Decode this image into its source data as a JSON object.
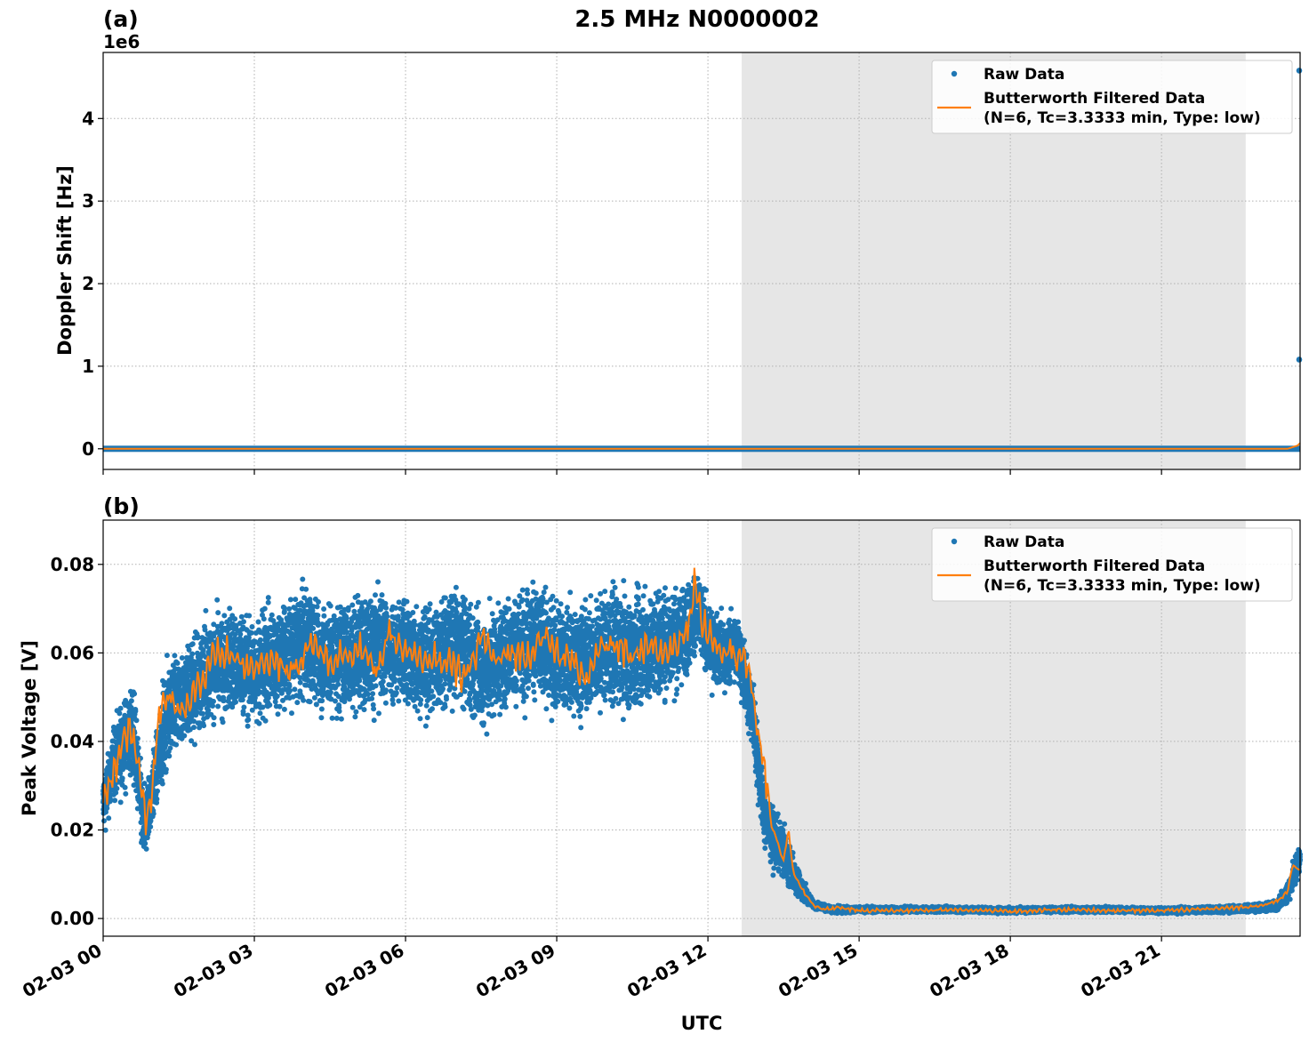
{
  "figure": {
    "title": "2.5 MHz N0000002",
    "xlabel": "UTC"
  },
  "legend": {
    "raw_label": "Raw Data",
    "filtered_label_line1": "Butterworth Filtered Data",
    "filtered_label_line2": "(N=6, Tc=3.3333 min, Type: low)"
  },
  "colors": {
    "raw": "#1f77b4",
    "filtered": "#ff7f0e",
    "night_shade": "#e6e6e6",
    "grid": "#b0b0b0"
  },
  "chart_data": [
    {
      "type": "scatter",
      "panel_label": "(a)",
      "ylabel": "Doppler Shift [Hz]",
      "offset_label": "1e6",
      "y_scale_factor": 1000000,
      "x_unit": "hours UTC on 02-03",
      "xlim": [
        0,
        23.75
      ],
      "ylim": [
        -0.25,
        4.8
      ],
      "yticks": [
        0,
        1,
        2,
        3,
        4
      ],
      "ytick_labels": [
        "0",
        "1",
        "2",
        "3",
        "4"
      ],
      "xticks": [
        0,
        3,
        6,
        9,
        12,
        15,
        18,
        21
      ],
      "xtick_labels": [
        "02-03 00",
        "02-03 03",
        "02-03 06",
        "02-03 09",
        "02-03 12",
        "02-03 15",
        "02-03 18",
        "02-03 21"
      ],
      "shaded_region": [
        12.67,
        22.67
      ],
      "grid": true,
      "legend_position": "top-right",
      "series": [
        {
          "name": "Raw Data",
          "style": "markers",
          "x": [
            0,
            2,
            4,
            6,
            8,
            10,
            12,
            14,
            16,
            18,
            20,
            22,
            23.6,
            23.74,
            23.75
          ],
          "y": [
            0,
            0,
            0,
            0,
            0,
            0,
            0,
            0,
            0,
            0,
            0,
            0,
            0,
            1.08,
            4.58
          ]
        },
        {
          "name": "Butterworth Filtered Data (N=6, Tc=3.3333 min, Type: low)",
          "style": "line",
          "x": [
            0,
            6,
            12,
            18,
            23.5,
            23.7,
            23.75
          ],
          "y": [
            0,
            0,
            0,
            0,
            0,
            0.04,
            0.07
          ]
        }
      ]
    },
    {
      "type": "scatter",
      "panel_label": "(b)",
      "ylabel": "Peak Voltage [V]",
      "x_unit": "hours UTC on 02-03",
      "xlim": [
        0,
        23.75
      ],
      "ylim": [
        -0.004,
        0.09
      ],
      "yticks": [
        0,
        0.02,
        0.04,
        0.06,
        0.08
      ],
      "ytick_labels": [
        "0.00",
        "0.02",
        "0.04",
        "0.06",
        "0.08"
      ],
      "xticks": [
        0,
        3,
        6,
        9,
        12,
        15,
        18,
        21
      ],
      "xtick_labels": [
        "02-03 00",
        "02-03 03",
        "02-03 06",
        "02-03 09",
        "02-03 12",
        "02-03 15",
        "02-03 18",
        "02-03 21"
      ],
      "shaded_region": [
        12.67,
        22.67
      ],
      "grid": true,
      "legend_position": "top-right",
      "series": [
        {
          "name": "Raw Data",
          "style": "markers",
          "x": [
            0,
            0.3,
            0.6,
            0.8,
            1.0,
            1.3,
            1.6,
            2.0,
            2.5,
            3.0,
            3.5,
            4.0,
            4.5,
            5.0,
            5.5,
            6.0,
            6.5,
            7.0,
            7.5,
            8.0,
            8.5,
            9.0,
            9.5,
            10.0,
            10.5,
            11.0,
            11.5,
            11.8,
            12.0,
            12.3,
            12.6,
            12.9,
            13.1,
            13.3,
            13.5,
            13.7,
            13.9,
            14.1,
            14.5,
            15,
            16,
            17,
            18,
            19,
            20,
            21,
            22,
            22.5,
            23,
            23.3,
            23.5,
            23.75
          ],
          "y": [
            0.026,
            0.038,
            0.042,
            0.02,
            0.03,
            0.048,
            0.05,
            0.055,
            0.058,
            0.056,
            0.059,
            0.062,
            0.058,
            0.06,
            0.061,
            0.06,
            0.058,
            0.062,
            0.056,
            0.06,
            0.063,
            0.059,
            0.058,
            0.061,
            0.06,
            0.062,
            0.064,
            0.07,
            0.062,
            0.06,
            0.061,
            0.045,
            0.025,
            0.018,
            0.015,
            0.01,
            0.006,
            0.003,
            0.002,
            0.002,
            0.002,
            0.002,
            0.0018,
            0.002,
            0.002,
            0.0018,
            0.002,
            0.0022,
            0.0025,
            0.003,
            0.006,
            0.014
          ],
          "spread": [
            0.008,
            0.012,
            0.014,
            0.01,
            0.01,
            0.014,
            0.014,
            0.014,
            0.015,
            0.015,
            0.015,
            0.016,
            0.016,
            0.016,
            0.016,
            0.016,
            0.016,
            0.016,
            0.016,
            0.016,
            0.016,
            0.016,
            0.016,
            0.016,
            0.016,
            0.016,
            0.014,
            0.012,
            0.01,
            0.01,
            0.01,
            0.01,
            0.01,
            0.008,
            0.007,
            0.005,
            0.003,
            0.001,
            0.001,
            0.0008,
            0.0008,
            0.0008,
            0.0008,
            0.0008,
            0.0008,
            0.0008,
            0.001,
            0.001,
            0.0012,
            0.0015,
            0.003,
            0.005
          ]
        },
        {
          "name": "Butterworth Filtered Data (N=6, Tc=3.3333 min, Type: low)",
          "style": "line",
          "x": [
            0,
            0.2,
            0.4,
            0.6,
            0.75,
            0.85,
            0.95,
            1.1,
            1.3,
            1.6,
            1.8,
            2.0,
            2.2,
            2.5,
            2.8,
            3.0,
            3.3,
            3.6,
            3.9,
            4.2,
            4.5,
            4.8,
            5.1,
            5.4,
            5.7,
            6.0,
            6.3,
            6.6,
            6.9,
            7.2,
            7.5,
            7.8,
            8.1,
            8.4,
            8.7,
            9.0,
            9.3,
            9.6,
            9.9,
            10.2,
            10.5,
            10.8,
            11.1,
            11.4,
            11.6,
            11.75,
            11.85,
            12.0,
            12.2,
            12.5,
            12.7,
            12.9,
            13.1,
            13.3,
            13.5,
            13.6,
            13.7,
            13.9,
            14.1,
            14.3,
            14.6,
            15.0,
            16.0,
            17.0,
            18.0,
            19.0,
            20.0,
            21.0,
            22.0,
            22.5,
            23.0,
            23.3,
            23.5,
            23.6,
            23.75
          ],
          "y": [
            0.026,
            0.032,
            0.04,
            0.043,
            0.03,
            0.022,
            0.028,
            0.045,
            0.05,
            0.047,
            0.052,
            0.054,
            0.059,
            0.06,
            0.057,
            0.056,
            0.059,
            0.056,
            0.058,
            0.063,
            0.058,
            0.06,
            0.061,
            0.056,
            0.064,
            0.06,
            0.058,
            0.059,
            0.057,
            0.054,
            0.064,
            0.058,
            0.06,
            0.059,
            0.064,
            0.06,
            0.058,
            0.055,
            0.061,
            0.062,
            0.058,
            0.061,
            0.06,
            0.062,
            0.066,
            0.077,
            0.068,
            0.065,
            0.062,
            0.06,
            0.06,
            0.05,
            0.035,
            0.02,
            0.013,
            0.02,
            0.01,
            0.006,
            0.003,
            0.002,
            0.0025,
            0.0018,
            0.0018,
            0.002,
            0.0016,
            0.002,
            0.0018,
            0.0018,
            0.0022,
            0.0025,
            0.003,
            0.004,
            0.006,
            0.012,
            0.011
          ]
        }
      ]
    }
  ]
}
